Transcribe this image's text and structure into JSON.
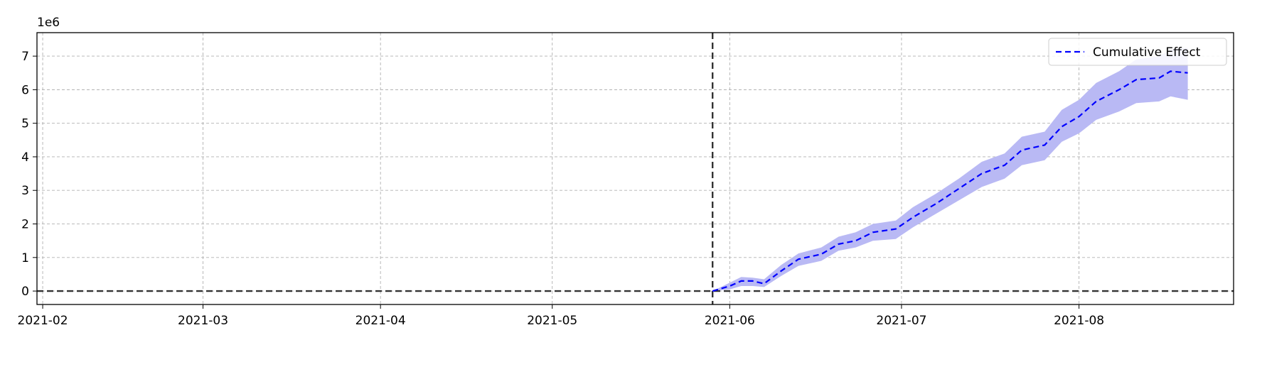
{
  "chart_data": {
    "type": "line",
    "title": "",
    "xlabel": "",
    "ylabel": "",
    "y_offset_text": "1e6",
    "x_axis": {
      "type": "date",
      "range": [
        "2021-01-31",
        "2021-08-28"
      ],
      "ticks": [
        {
          "date": "2021-02-01",
          "label": "2021-02"
        },
        {
          "date": "2021-03-01",
          "label": "2021-03"
        },
        {
          "date": "2021-04-01",
          "label": "2021-04"
        },
        {
          "date": "2021-05-01",
          "label": "2021-05"
        },
        {
          "date": "2021-06-01",
          "label": "2021-06"
        },
        {
          "date": "2021-07-01",
          "label": "2021-07"
        },
        {
          "date": "2021-08-01",
          "label": "2021-08"
        }
      ]
    },
    "y_axis": {
      "range": [
        -0.4,
        7.7
      ],
      "scale": 1000000,
      "ticks": [
        {
          "value": 0,
          "label": "0"
        },
        {
          "value": 1,
          "label": "1"
        },
        {
          "value": 2,
          "label": "2"
        },
        {
          "value": 3,
          "label": "3"
        },
        {
          "value": 4,
          "label": "4"
        },
        {
          "value": 5,
          "label": "5"
        },
        {
          "value": 6,
          "label": "6"
        },
        {
          "value": 7,
          "label": "7"
        }
      ]
    },
    "grid": true,
    "legend": {
      "position": "top-right",
      "entries": [
        "Cumulative Effect"
      ]
    },
    "reference_lines": [
      {
        "orientation": "vertical",
        "date": "2021-05-29",
        "style": "dashed",
        "color": "#333333"
      },
      {
        "orientation": "horizontal",
        "value": 0,
        "style": "dashed",
        "color": "#333333"
      }
    ],
    "series": [
      {
        "name": "Cumulative Effect",
        "color": "#0000ff",
        "style": "dashed",
        "band_color": "#b9b9f4",
        "points": [
          {
            "x": "2021-05-29",
            "y": 0.0,
            "lo": 0.0,
            "hi": 0.0
          },
          {
            "x": "2021-06-01",
            "y": 0.15,
            "lo": 0.05,
            "hi": 0.25
          },
          {
            "x": "2021-06-03",
            "y": 0.3,
            "lo": 0.15,
            "hi": 0.42
          },
          {
            "x": "2021-06-05",
            "y": 0.3,
            "lo": 0.15,
            "hi": 0.4
          },
          {
            "x": "2021-06-07",
            "y": 0.22,
            "lo": 0.12,
            "hi": 0.35
          },
          {
            "x": "2021-06-10",
            "y": 0.6,
            "lo": 0.45,
            "hi": 0.78
          },
          {
            "x": "2021-06-13",
            "y": 0.95,
            "lo": 0.75,
            "hi": 1.12
          },
          {
            "x": "2021-06-17",
            "y": 1.1,
            "lo": 0.9,
            "hi": 1.3
          },
          {
            "x": "2021-06-20",
            "y": 1.4,
            "lo": 1.2,
            "hi": 1.62
          },
          {
            "x": "2021-06-23",
            "y": 1.5,
            "lo": 1.3,
            "hi": 1.75
          },
          {
            "x": "2021-06-26",
            "y": 1.75,
            "lo": 1.5,
            "hi": 2.0
          },
          {
            "x": "2021-06-30",
            "y": 1.85,
            "lo": 1.55,
            "hi": 2.1
          },
          {
            "x": "2021-07-03",
            "y": 2.2,
            "lo": 1.9,
            "hi": 2.5
          },
          {
            "x": "2021-07-07",
            "y": 2.6,
            "lo": 2.3,
            "hi": 2.9
          },
          {
            "x": "2021-07-11",
            "y": 3.05,
            "lo": 2.7,
            "hi": 3.35
          },
          {
            "x": "2021-07-15",
            "y": 3.5,
            "lo": 3.1,
            "hi": 3.85
          },
          {
            "x": "2021-07-19",
            "y": 3.75,
            "lo": 3.35,
            "hi": 4.1
          },
          {
            "x": "2021-07-22",
            "y": 4.2,
            "lo": 3.75,
            "hi": 4.6
          },
          {
            "x": "2021-07-26",
            "y": 4.35,
            "lo": 3.9,
            "hi": 4.75
          },
          {
            "x": "2021-07-29",
            "y": 4.9,
            "lo": 4.45,
            "hi": 5.4
          },
          {
            "x": "2021-08-01",
            "y": 5.2,
            "lo": 4.7,
            "hi": 5.7
          },
          {
            "x": "2021-08-04",
            "y": 5.65,
            "lo": 5.1,
            "hi": 6.2
          },
          {
            "x": "2021-08-08",
            "y": 6.0,
            "lo": 5.35,
            "hi": 6.55
          },
          {
            "x": "2021-08-11",
            "y": 6.3,
            "lo": 5.6,
            "hi": 6.9
          },
          {
            "x": "2021-08-15",
            "y": 6.35,
            "lo": 5.65,
            "hi": 7.0
          },
          {
            "x": "2021-08-17",
            "y": 6.55,
            "lo": 5.8,
            "hi": 7.2
          },
          {
            "x": "2021-08-20",
            "y": 6.5,
            "lo": 5.7,
            "hi": 7.25
          }
        ]
      }
    ]
  }
}
